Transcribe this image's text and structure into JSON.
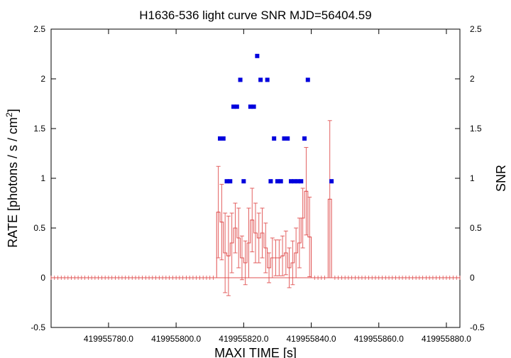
{
  "chart_data": {
    "type": "scatter",
    "title": "H1636-536 light curve  SNR MJD=56404.59",
    "xlabel": "MAXI TIME [s]",
    "ylabel_left": "RATE [photons / s / cm",
    "ylabel_left_sup": "2",
    "ylabel_left_end": "]",
    "ylabel_right": "SNR",
    "xlim": [
      419955763,
      419955884
    ],
    "ylim": [
      -0.5,
      2.5
    ],
    "y2lim": [
      -0.5,
      2.5
    ],
    "x_tick_values": [
      419955780,
      419955800,
      419955820,
      419955840,
      419955860,
      419955880
    ],
    "x_tick_labels": [
      "419955780.0",
      "419955800.0",
      "419955820.0",
      "419955840.0",
      "419955860.0",
      "419955880.0"
    ],
    "y_tick_values": [
      -0.5,
      0,
      0.5,
      1,
      1.5,
      2,
      2.5
    ],
    "y_tick_labels": [
      "-0.5",
      "0",
      "0.5",
      "1",
      "1.5",
      "2",
      "2.5"
    ],
    "y2_tick_labels": [
      "-0.5",
      "0",
      "0.5",
      "1",
      "1.5",
      "2",
      "2.5"
    ],
    "grid": false,
    "rate_series": {
      "color": "#e05050",
      "points": [
        {
          "x": 419955812.5,
          "y": 0.66,
          "err": 0.46
        },
        {
          "x": 419955813.5,
          "y": 0.56,
          "err": 0.38
        },
        {
          "x": 419955814.5,
          "y": 0.25,
          "err": 0.4
        },
        {
          "x": 419955815.5,
          "y": 0.22,
          "err": 0.4
        },
        {
          "x": 419955816.5,
          "y": 0.35,
          "err": 0.3
        },
        {
          "x": 419955817.5,
          "y": 0.5,
          "err": 0.25
        },
        {
          "x": 419955818.5,
          "y": 0.4,
          "err": 0.3
        },
        {
          "x": 419955819.5,
          "y": 0.2,
          "err": 0.22
        },
        {
          "x": 419955820.5,
          "y": 0.15,
          "err": 0.22
        },
        {
          "x": 419955821.5,
          "y": 0.35,
          "err": 0.35
        },
        {
          "x": 419955822.5,
          "y": 0.58,
          "err": 0.32
        },
        {
          "x": 419955823.5,
          "y": 0.45,
          "err": 0.3
        },
        {
          "x": 419955824.5,
          "y": 0.4,
          "err": 0.25
        },
        {
          "x": 419955825.5,
          "y": 0.45,
          "err": 0.25
        },
        {
          "x": 419955826.5,
          "y": 0.3,
          "err": 0.25
        },
        {
          "x": 419955827.5,
          "y": 0.1,
          "err": 0.15
        },
        {
          "x": 419955828.5,
          "y": 0.2,
          "err": 0.2
        },
        {
          "x": 419955829.5,
          "y": 0.2,
          "err": 0.18
        },
        {
          "x": 419955830.5,
          "y": 0.2,
          "err": 0.18
        },
        {
          "x": 419955831.5,
          "y": 0.22,
          "err": 0.2
        },
        {
          "x": 419955832.5,
          "y": 0.25,
          "err": 0.22
        },
        {
          "x": 419955833.5,
          "y": 0.1,
          "err": 0.2
        },
        {
          "x": 419955834.5,
          "y": 0.15,
          "err": 0.22
        },
        {
          "x": 419955835.5,
          "y": 0.25,
          "err": 0.25
        },
        {
          "x": 419955836.5,
          "y": 0.35,
          "err": 0.25
        },
        {
          "x": 419955837.5,
          "y": 0.6,
          "err": 0.3
        },
        {
          "x": 419955838.5,
          "y": 0.87,
          "err": 0.44
        },
        {
          "x": 419955839.5,
          "y": 0.41,
          "err": 0.4
        },
        {
          "x": 419955845.5,
          "y": 0.79,
          "err": 0.79
        }
      ],
      "baseline_start": 419955763,
      "baseline_end": 419955884,
      "baseline_gap": [
        419955840,
        419955845
      ],
      "baseline_step": 1
    },
    "snr_series": {
      "color": "#0000dd",
      "points": [
        {
          "x": 419955813.0,
          "y": 1.4
        },
        {
          "x": 419955814.0,
          "y": 1.4
        },
        {
          "x": 419955815.0,
          "y": 0.97
        },
        {
          "x": 419955816.0,
          "y": 0.97
        },
        {
          "x": 419955817.0,
          "y": 1.72
        },
        {
          "x": 419955818.0,
          "y": 1.72
        },
        {
          "x": 419955819.0,
          "y": 1.99
        },
        {
          "x": 419955820.0,
          "y": 0.97
        },
        {
          "x": 419955822.0,
          "y": 1.72
        },
        {
          "x": 419955823.0,
          "y": 1.72
        },
        {
          "x": 419955824.0,
          "y": 2.23
        },
        {
          "x": 419955825.0,
          "y": 1.99
        },
        {
          "x": 419955827.0,
          "y": 1.99
        },
        {
          "x": 419955828.0,
          "y": 0.97
        },
        {
          "x": 419955829.0,
          "y": 1.4
        },
        {
          "x": 419955830.0,
          "y": 0.97
        },
        {
          "x": 419955831.0,
          "y": 0.97
        },
        {
          "x": 419955832.0,
          "y": 1.4
        },
        {
          "x": 419955833.0,
          "y": 1.4
        },
        {
          "x": 419955834.0,
          "y": 0.97
        },
        {
          "x": 419955835.0,
          "y": 0.97
        },
        {
          "x": 419955836.0,
          "y": 0.97
        },
        {
          "x": 419955837.0,
          "y": 0.97
        },
        {
          "x": 419955838.0,
          "y": 1.4
        },
        {
          "x": 419955839.0,
          "y": 1.99
        },
        {
          "x": 419955846.0,
          "y": 0.97
        }
      ]
    }
  }
}
